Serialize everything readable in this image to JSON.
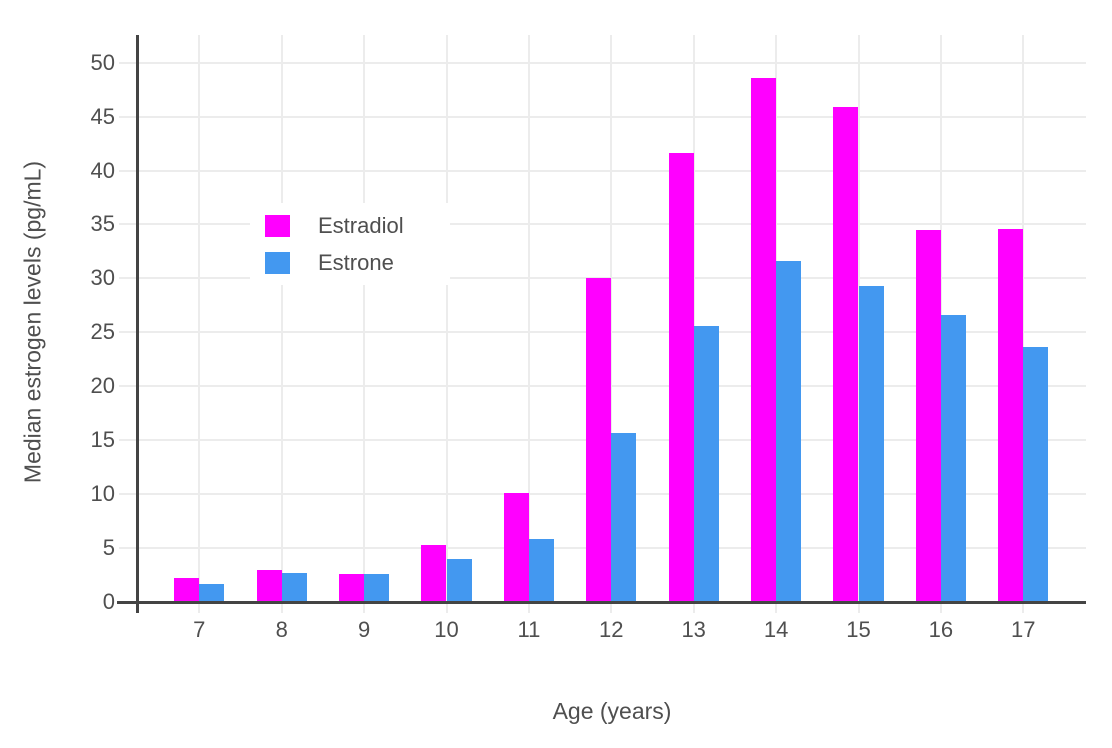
{
  "chart_data": {
    "type": "bar",
    "title": "",
    "xlabel": "Age (years)",
    "ylabel": "Median estrogen levels (pg/mL)",
    "categories": [
      "7",
      "8",
      "9",
      "10",
      "11",
      "12",
      "13",
      "14",
      "15",
      "16",
      "17"
    ],
    "series": [
      {
        "name": "Estradiol",
        "color": "#FF00FF",
        "values": [
          2.2,
          3.0,
          2.6,
          5.3,
          10.1,
          30.0,
          41.6,
          48.6,
          45.9,
          34.5,
          34.6
        ]
      },
      {
        "name": "Estrone",
        "color": "#4398F0",
        "values": [
          1.7,
          2.7,
          2.6,
          4.0,
          5.8,
          15.7,
          25.6,
          31.6,
          29.3,
          26.6,
          23.6
        ]
      }
    ],
    "y_ticks": [
      0,
      5,
      10,
      15,
      20,
      25,
      30,
      35,
      40,
      45,
      50
    ],
    "ylim": [
      0,
      52.5
    ],
    "grid": true,
    "legend_position": "inside-top-left",
    "colors": {
      "grid": "#ECECEC",
      "axis_line": "#444444",
      "tick_text": "#4f4f4f",
      "title_text": "#4f4f4f",
      "background": "#ffffff"
    }
  }
}
